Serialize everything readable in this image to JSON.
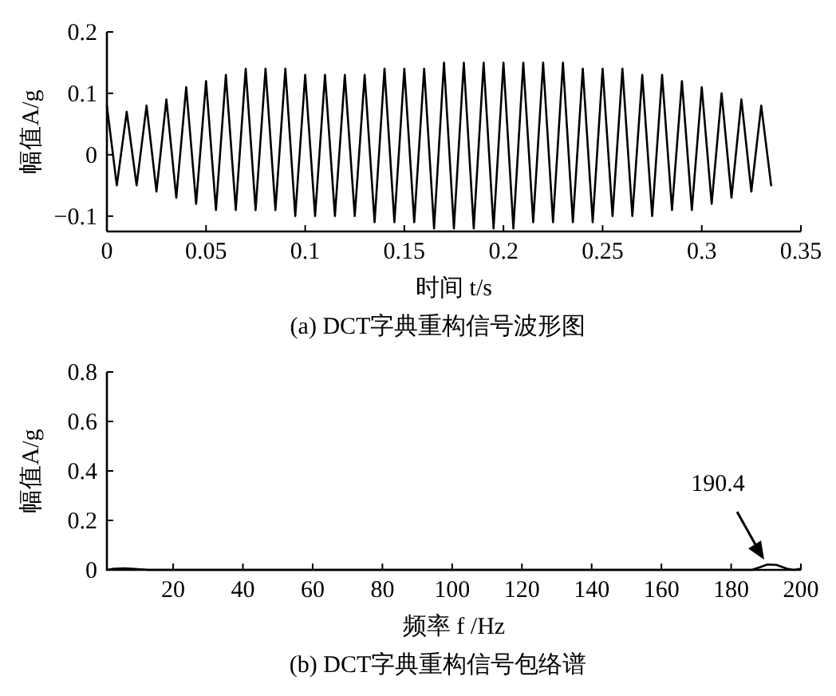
{
  "chart_data": [
    {
      "type": "line",
      "title": "(a) DCT字典重构信号波形图",
      "xlabel": "时间 t/s",
      "ylabel": "幅值A/g",
      "xlim": [
        0,
        0.35
      ],
      "ylim": [
        -0.125,
        0.2
      ],
      "xticks": [
        0,
        0.05,
        0.1,
        0.15,
        0.2,
        0.25,
        0.3,
        0.35
      ],
      "yticks": [
        {
          "value": -0.1,
          "label": "−0.1"
        },
        0,
        0.1,
        0.2
      ],
      "grid": false,
      "series": [
        {
          "color": "#000000",
          "x": [
            0,
            0.005,
            0.01,
            0.015,
            0.02,
            0.025,
            0.03,
            0.035,
            0.04,
            0.045,
            0.05,
            0.055,
            0.06,
            0.065,
            0.07,
            0.075,
            0.08,
            0.085,
            0.09,
            0.095,
            0.1,
            0.105,
            0.11,
            0.115,
            0.12,
            0.125,
            0.13,
            0.135,
            0.14,
            0.145,
            0.15,
            0.155,
            0.16,
            0.165,
            0.17,
            0.175,
            0.18,
            0.185,
            0.19,
            0.195,
            0.2,
            0.205,
            0.21,
            0.215,
            0.22,
            0.225,
            0.23,
            0.235,
            0.24,
            0.245,
            0.25,
            0.255,
            0.26,
            0.265,
            0.27,
            0.275,
            0.28,
            0.285,
            0.29,
            0.295,
            0.3,
            0.305,
            0.31,
            0.315,
            0.32,
            0.325,
            0.33,
            0.335
          ],
          "values": [
            0.08,
            -0.05,
            0.07,
            -0.05,
            0.08,
            -0.06,
            0.09,
            -0.07,
            0.11,
            -0.08,
            0.12,
            -0.09,
            0.13,
            -0.09,
            0.14,
            -0.09,
            0.14,
            -0.09,
            0.14,
            -0.1,
            0.13,
            -0.1,
            0.13,
            -0.1,
            0.13,
            -0.1,
            0.13,
            -0.11,
            0.14,
            -0.11,
            0.14,
            -0.11,
            0.14,
            -0.12,
            0.15,
            -0.12,
            0.15,
            -0.12,
            0.15,
            -0.12,
            0.15,
            -0.12,
            0.15,
            -0.11,
            0.15,
            -0.11,
            0.15,
            -0.11,
            0.14,
            -0.11,
            0.14,
            -0.1,
            0.14,
            -0.1,
            0.13,
            -0.1,
            0.13,
            -0.09,
            0.12,
            -0.09,
            0.11,
            -0.08,
            0.1,
            -0.07,
            0.09,
            -0.06,
            0.08,
            -0.05
          ]
        }
      ]
    },
    {
      "type": "line",
      "title": "(b) DCT字典重构信号包络谱",
      "xlabel": "频率 f /Hz",
      "ylabel": "幅值A/g",
      "xlim": [
        1,
        200
      ],
      "ylim": [
        0,
        0.8
      ],
      "xticks": [
        20,
        40,
        60,
        80,
        100,
        120,
        140,
        160,
        180,
        200
      ],
      "yticks": [
        0,
        0.2,
        0.4,
        0.6,
        0.8
      ],
      "grid": false,
      "annotations": [
        {
          "text": "190.4",
          "x": 190.4,
          "y": 0.022
        }
      ],
      "series": [
        {
          "color": "#000000",
          "x": [
            1,
            3,
            6,
            9,
            13,
            180,
            186,
            188,
            190.4,
            193,
            196,
            198,
            200
          ],
          "values": [
            0,
            0.005,
            0.006,
            0.004,
            0,
            0,
            0,
            0.01,
            0.022,
            0.02,
            0.005,
            0,
            0.005
          ]
        }
      ]
    }
  ]
}
